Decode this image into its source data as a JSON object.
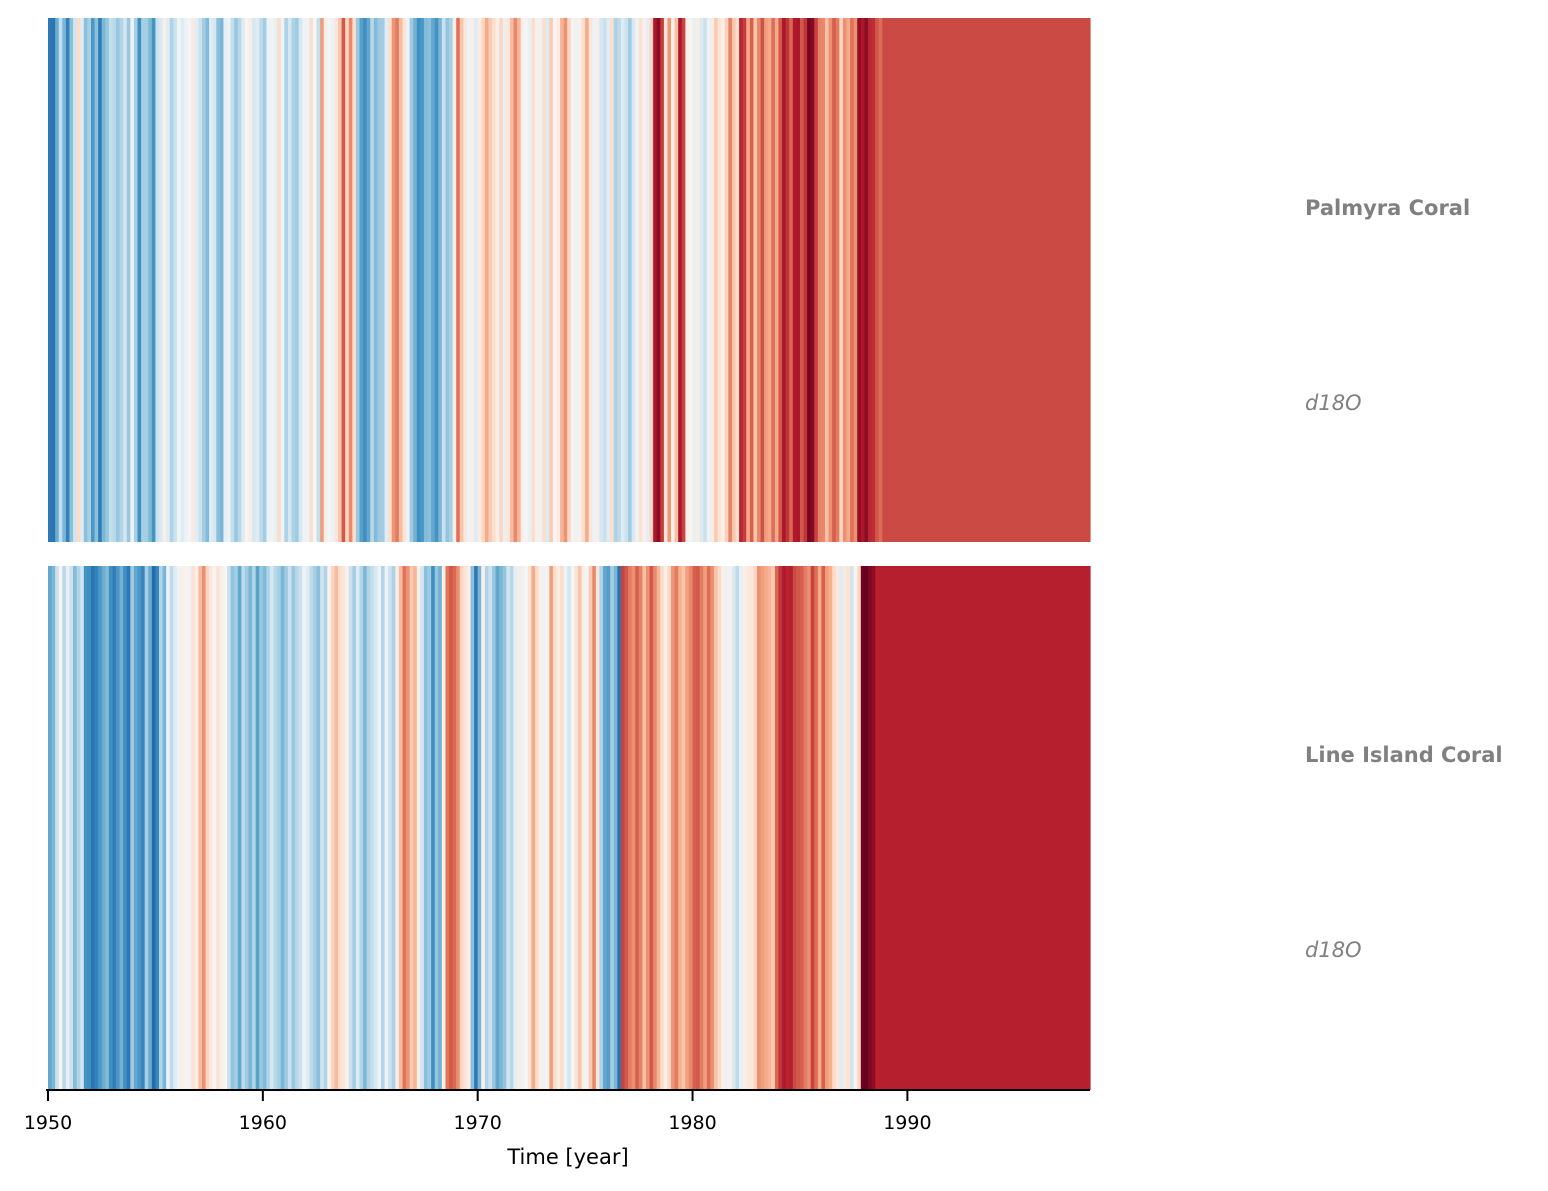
{
  "chart_data": [
    {
      "type": "heatmap",
      "style": "warming stripes",
      "colormap": "RdBu_r",
      "title": "Palmyra Coral",
      "variable": "d18O",
      "x_start": 1950.0,
      "x_step": 0.1666667,
      "xlim": [
        1950,
        1998.5
      ],
      "color_range": [
        -1,
        1
      ],
      "values": [
        -0.72,
        -0.74,
        -0.5,
        -0.24,
        -0.46,
        -0.68,
        -0.42,
        -0.2,
        0.2,
        -0.12,
        -0.42,
        -0.33,
        -0.58,
        -0.42,
        -0.7,
        -0.46,
        -0.39,
        -0.24,
        -0.28,
        -0.38,
        -0.3,
        -0.19,
        -0.38,
        -0.06,
        -0.34,
        -0.62,
        -0.34,
        -0.34,
        -0.45,
        -0.6,
        -0.22,
        -0.16,
        0.06,
        -0.12,
        -0.32,
        -0.22,
        -0.05,
        -0.12,
        -0.06,
        -0.02,
        0.1,
        -0.12,
        -0.22,
        -0.35,
        -0.44,
        -0.12,
        -0.18,
        -0.42,
        -0.46,
        -0.08,
        -0.06,
        -0.24,
        -0.38,
        -0.28,
        -0.12,
        0.02,
        0.08,
        -0.18,
        -0.12,
        -0.26,
        -0.35,
        -0.06,
        -0.04,
        -0.08,
        0.2,
        -0.06,
        -0.32,
        -0.18,
        -0.32,
        -0.36,
        -0.18,
        -0.06,
        -0.04,
        0.18,
        -0.02,
        -0.24,
        0.42,
        0.06,
        -0.02,
        -0.06,
        0.12,
        0.28,
        0.62,
        0.22,
        0.48,
        0.18,
        -0.38,
        -0.55,
        -0.62,
        -0.52,
        -0.28,
        -0.44,
        -0.36,
        -0.35,
        -0.12,
        0.18,
        0.45,
        0.52,
        0.32,
        0.14,
        -0.06,
        -0.36,
        -0.48,
        -0.62,
        -0.58,
        -0.44,
        -0.42,
        -0.52,
        -0.6,
        -0.46,
        -0.22,
        -0.4,
        -0.34,
        0.08,
        0.55,
        0.28,
        0.12,
        -0.06,
        0.06,
        -0.12,
        0.08,
        0.22,
        0.38,
        0.26,
        0.18,
        0.06,
        0.22,
        -0.08,
        0.12,
        0.32,
        0.48,
        0.34,
        0.06,
        -0.02,
        -0.08,
        0.18,
        0.06,
        -0.06,
        0.18,
        -0.14,
        0.26,
        0.02,
        0.08,
        0.34,
        0.45,
        0.22,
        0.04,
        -0.06,
        0.06,
        0.18,
        0.38,
        0.12,
        -0.06,
        0.06,
        -0.18,
        -0.22,
        -0.12,
        0.18,
        -0.32,
        -0.26,
        -0.12,
        -0.22,
        -0.36,
        -0.16,
        -0.04,
        0.16,
        0.05,
        -0.1,
        0.22,
        0.82,
        0.9,
        0.7,
        0.12,
        0.44,
        0.05,
        0.3,
        0.82,
        0.68,
        0.06,
        0.02,
        -0.08,
        0.08,
        -0.14,
        -0.22,
        -0.06,
        0.08,
        0.26,
        0.14,
        0.06,
        0.24,
        0.5,
        0.28,
        0.18,
        0.76,
        0.7,
        0.38,
        0.6,
        0.28,
        0.48,
        0.64,
        0.42,
        0.38,
        0.56,
        0.38,
        0.62,
        0.82,
        0.72,
        0.58,
        0.8,
        0.82,
        0.62,
        0.72,
        0.96,
        0.92,
        0.68,
        0.5,
        0.48,
        0.3,
        0.46,
        0.6,
        0.52,
        0.22,
        0.46,
        0.38,
        0.55,
        0.46,
        0.88,
        0.82,
        0.9,
        0.76,
        0.74,
        0.62,
        0.56,
        0.66
      ]
    },
    {
      "type": "heatmap",
      "style": "warming stripes",
      "colormap": "RdBu_r",
      "title": "Line Island Coral",
      "variable": "d18O",
      "x_start": 1950.0,
      "x_step": 0.1666667,
      "xlim": [
        1950,
        1998.5
      ],
      "color_range": [
        -1,
        1
      ],
      "values": [
        -0.52,
        -0.46,
        -0.22,
        0.02,
        -0.28,
        -0.08,
        -0.22,
        -0.44,
        -0.3,
        -0.2,
        -0.6,
        -0.62,
        -0.74,
        -0.68,
        -0.58,
        -0.5,
        -0.44,
        -0.62,
        -0.7,
        -0.58,
        -0.48,
        -0.62,
        -0.72,
        -0.36,
        -0.52,
        -0.58,
        -0.66,
        -0.34,
        -0.5,
        -0.78,
        -0.66,
        -0.3,
        -0.46,
        -0.06,
        -0.26,
        -0.12,
        -0.04,
        0.06,
        0.04,
        -0.04,
        0.16,
        0.06,
        0.32,
        0.46,
        0.22,
        0.1,
        0.02,
        0.14,
        0.06,
        0.02,
        -0.22,
        -0.4,
        -0.34,
        -0.52,
        -0.26,
        -0.36,
        -0.46,
        -0.3,
        -0.54,
        -0.38,
        -0.44,
        -0.3,
        -0.18,
        -0.28,
        -0.34,
        -0.46,
        -0.36,
        -0.22,
        -0.38,
        -0.28,
        -0.22,
        -0.04,
        -0.12,
        -0.26,
        -0.34,
        -0.42,
        -0.2,
        -0.3,
        0.04,
        0.22,
        0.32,
        0.18,
        0.12,
        0.04,
        -0.22,
        -0.34,
        -0.12,
        -0.3,
        -0.46,
        -0.3,
        -0.24,
        -0.18,
        -0.06,
        -0.3,
        -0.06,
        -0.22,
        -0.32,
        0.08,
        0.32,
        0.54,
        0.45,
        0.26,
        0.34,
        0.06,
        -0.2,
        -0.42,
        -0.36,
        -0.62,
        -0.4,
        -0.48,
        0.06,
        0.54,
        0.62,
        0.58,
        0.46,
        0.22,
        0.14,
        0.06,
        -0.42,
        -0.72,
        -0.46,
        0.05,
        -0.3,
        -0.22,
        -0.38,
        -0.52,
        -0.46,
        -0.4,
        -0.2,
        -0.28,
        -0.1,
        0.08,
        -0.06,
        0.02,
        0.14,
        0.38,
        0.2,
        0.06,
        -0.06,
        0.04,
        0.42,
        0.2,
        0.08,
        0.18,
        -0.06,
        -0.18,
        -0.02,
        0.14,
        0.28,
        0.06,
        -0.02,
        0.26,
        0.48,
        0.12,
        -0.32,
        -0.52,
        -0.56,
        -0.34,
        -0.46,
        -0.74,
        0.68,
        0.62,
        0.52,
        0.46,
        0.6,
        0.5,
        0.3,
        0.46,
        0.62,
        0.48,
        0.34,
        0.18,
        0.06,
        0.22,
        0.44,
        0.52,
        0.36,
        0.28,
        0.42,
        0.48,
        0.6,
        0.62,
        0.52,
        0.42,
        0.56,
        0.46,
        0.28,
        0.2,
        0.06,
        -0.06,
        0.04,
        -0.14,
        -0.26,
        -0.08,
        0.06,
        0.1,
        0.12,
        0.22,
        0.46,
        0.42,
        0.38,
        0.34,
        0.26,
        0.58,
        0.72,
        0.8,
        0.76,
        0.78,
        0.66,
        0.62,
        0.6,
        0.52,
        0.46,
        0.68,
        0.56,
        0.38,
        0.6,
        0.42,
        0.36,
        0.2,
        0.1,
        -0.12,
        0.1,
        0.14,
        -0.2,
        0.02,
        0.22,
        0.98,
        1.0,
        0.94,
        0.9,
        0.78
      ]
    }
  ],
  "panels": [
    {
      "name": "Palmyra Coral",
      "variable": "d18O"
    },
    {
      "name": "Line Island Coral",
      "variable": "d18O"
    }
  ],
  "x_axis": {
    "label": "Time [year]",
    "ticks": [
      1950,
      1960,
      1970,
      1980,
      1990
    ],
    "tick_labels": [
      "1950",
      "1960",
      "1970",
      "1980",
      "1990"
    ]
  }
}
